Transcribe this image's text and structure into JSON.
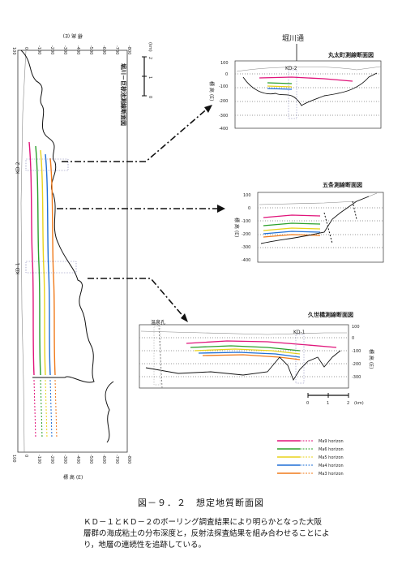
{
  "hori_river_label": "堀川通",
  "main_section": {
    "title": "堀川－巨椋池測線断面図",
    "top_axis_label": "標 高 (E)",
    "bottom_axis_label": "標 高 (E)",
    "depth_ticks": [
      "100",
      "0",
      "-100",
      "-200",
      "-300",
      "-400",
      "-500",
      "-600",
      "-700",
      "-800"
    ],
    "km_label": "(km)",
    "km_ticks": [
      "0",
      "1",
      "2"
    ],
    "borehole_kd2": "KD-2",
    "borehole_kd1": "KD-1"
  },
  "panels": [
    {
      "title": "丸太町測線断面図",
      "y_ticks": [
        "100",
        "0",
        "-100",
        "-200",
        "-300",
        "-400"
      ],
      "axis_label": "標 高 (E)",
      "borehole": "KD-2"
    },
    {
      "title": "五条測線断面図",
      "y_ticks": [
        "100",
        "0",
        "-100",
        "-200",
        "-300",
        "-400"
      ],
      "axis_label": "標 高 (E)"
    },
    {
      "title": "久世橋測線断面図",
      "y_ticks": [
        "100",
        "0",
        "-100",
        "-200",
        "-300"
      ],
      "axis_label": "標 高 (E)",
      "borehole": "KD-1",
      "well_label": "温泉孔"
    }
  ],
  "scale_bar": {
    "ticks": [
      "0",
      "1",
      "2"
    ],
    "unit": "(km)"
  },
  "legend": [
    {
      "label": "Ma9 horizon",
      "color": "#e0147a"
    },
    {
      "label": "Ma6 horizon",
      "color": "#2aa02a"
    },
    {
      "label": "Ma5 horizon",
      "color": "#e8d21a"
    },
    {
      "label": "Ma4 horizon",
      "color": "#1f6fd6"
    },
    {
      "label": "Ma3 horizon",
      "color": "#f07a1a"
    }
  ],
  "caption": "図－９．２　想定地質断面図",
  "description": [
    "ＫＤ－１とＫＤ－２のボーリング調査結果により明らかとなった大阪",
    "層群の海成粘土の分布深度と，反射法探査結果を組み合わせることによ",
    "り，地層の連続性を追跡している。"
  ]
}
